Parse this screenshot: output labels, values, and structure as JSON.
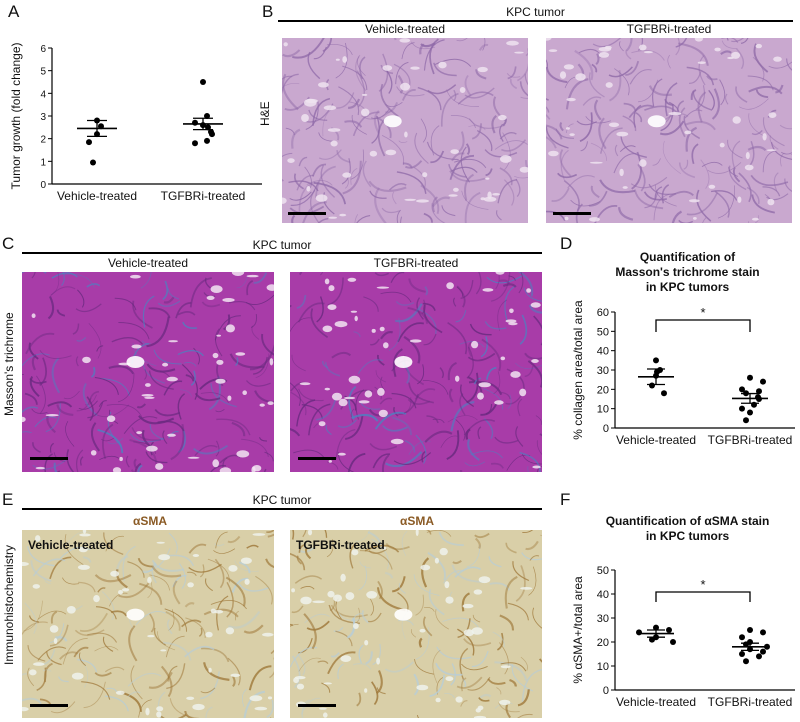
{
  "panels": {
    "A": {
      "letter": "A",
      "chart_data": {
        "type": "scatter",
        "categories": [
          "Vehicle-treated",
          "TGFBRi-treated"
        ],
        "ylabel": "Tumor growth (fold change)",
        "ylim": [
          0,
          6
        ],
        "yticks": [
          "0",
          "1",
          "2",
          "3",
          "4",
          "5",
          "6"
        ],
        "series": [
          {
            "values": [
              2.8,
              2.55,
              1.85,
              2.2,
              0.95
            ]
          },
          {
            "values": [
              4.5,
              3.0,
              2.7,
              2.6,
              2.5,
              2.3,
              2.2,
              1.9,
              1.8
            ]
          }
        ],
        "mean": [
          2.45,
          2.65
        ],
        "sem": [
          0.35,
          0.25
        ]
      }
    },
    "B": {
      "letter": "B",
      "header": "KPC tumor",
      "side_label": "H&E",
      "left_title": "Vehicle-treated",
      "right_title": "TGFBRi-treated",
      "colors": {
        "tissue": "#c9a8cf",
        "dark": "#8f6aa8",
        "light": "#efe3f0"
      }
    },
    "C": {
      "letter": "C",
      "header": "KPC tumor",
      "side_label": "Masson's trichrome",
      "left_title": "Vehicle-treated",
      "right_title": "TGFBRi-treated",
      "colors": {
        "tissue": "#a83ca8",
        "dark": "#6a2a80",
        "blue": "#4f7fc0",
        "light": "#f2e4f2"
      }
    },
    "D": {
      "letter": "D",
      "title": "Quantification of Masson's trichrome stain in KPC tumors",
      "title_lines": [
        "Quantification of",
        "Masson's trichrome stain",
        "in KPC tumors"
      ],
      "significance": "*",
      "chart_data": {
        "type": "scatter",
        "categories": [
          "Vehicle-treated",
          "TGFBRi-treated"
        ],
        "ylabel": "% collagen area/total area",
        "ylim": [
          0,
          60
        ],
        "yticks": [
          "0",
          "10",
          "20",
          "30",
          "40",
          "50",
          "60"
        ],
        "series": [
          {
            "values": [
              35,
              30,
              29,
              27,
              22,
              18
            ]
          },
          {
            "values": [
              26,
              24,
              20,
              19,
              18,
              16,
              15,
              12,
              10,
              8,
              4
            ]
          }
        ],
        "mean": [
          26.5,
          15.3
        ],
        "sem": [
          4.0,
          2.5
        ]
      }
    },
    "E": {
      "letter": "E",
      "header": "KPC tumor",
      "side_label": "Immunohistochemistry",
      "stain_left": "αSMA",
      "stain_right": "αSMA",
      "left_title": "Vehicle-treated",
      "right_title": "TGFBRi-treated",
      "colors": {
        "tissue": "#d9cfa8",
        "dark": "#a07a3c",
        "light": "#eef2ec",
        "blue": "#b8cdd6"
      }
    },
    "F": {
      "letter": "F",
      "title": "Quantification of αSMA stain in KPC tumors",
      "title_lines": [
        "Quantification of αSMA stain",
        "in KPC tumors"
      ],
      "significance": "*",
      "chart_data": {
        "type": "scatter",
        "categories": [
          "Vehicle-treated",
          "TGFBRi-treated"
        ],
        "ylabel": "% αSMA+/total area",
        "ylim": [
          0,
          50
        ],
        "yticks": [
          "0",
          "10",
          "20",
          "30",
          "40",
          "50"
        ],
        "series": [
          {
            "values": [
              26,
              25,
              24,
              22,
              21,
              20
            ]
          },
          {
            "values": [
              25,
              24,
              22,
              20,
              19,
              18,
              17,
              16,
              15,
              14,
              12
            ]
          }
        ],
        "mean": [
          23.5,
          18.0
        ],
        "sem": [
          1.5,
          1.5
        ]
      }
    }
  }
}
